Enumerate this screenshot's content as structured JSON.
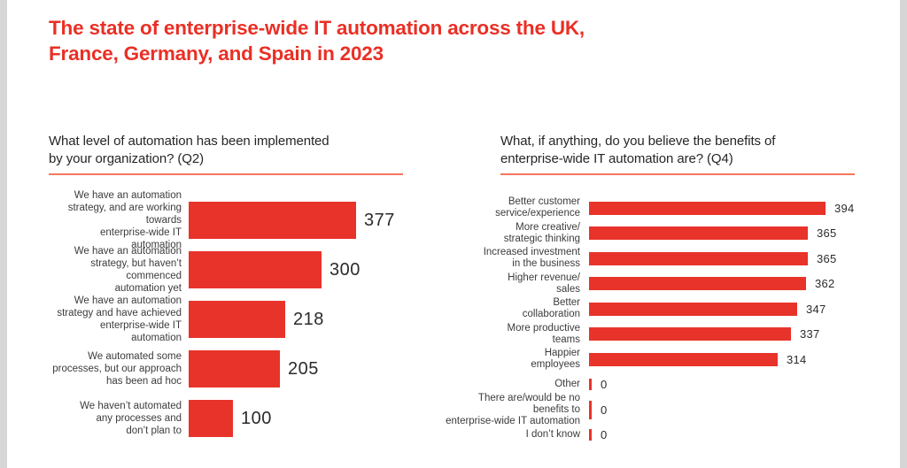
{
  "page": {
    "title": "The state of enterprise-wide IT automation across the UK,\nFrance, Germany, and Spain in 2023"
  },
  "colors": {
    "accent_red": "#E8332A",
    "title_red": "#EA2F25",
    "underline_salmon": "#F4775C",
    "text_dark": "#2B2B2B",
    "label_gray": "#3C3C3C",
    "edge_gray": "#D6D6D6"
  },
  "chart_data": [
    {
      "type": "bar",
      "orientation": "horizontal",
      "title": "What level of automation has been implemented\nby your organization? (Q2)",
      "categories": [
        "We have an automation\nstrategy, and are working towards\nenterprise-wide IT automation",
        "We have an automation\nstrategy, but haven’t commenced\nautomation yet",
        "We have an automation\nstrategy and have achieved\nenterprise-wide IT automation",
        "We automated some\nprocesses, but our approach\nhas been ad hoc",
        "We haven’t automated\nany processes and\ndon’t plan to"
      ],
      "values": [
        377,
        300,
        218,
        205,
        100
      ],
      "bar_color": "#E8332A",
      "xlim": [
        0,
        400
      ],
      "grid": false,
      "legend": false,
      "value_labels": "end-of-bar"
    },
    {
      "type": "bar",
      "orientation": "horizontal",
      "title": "What, if anything, do you believe the benefits of\nenterprise-wide IT automation are? (Q4)",
      "categories": [
        "Better customer\nservice/experience",
        "More creative/\nstrategic thinking",
        "Increased investment\nin the business",
        "Higher revenue/\nsales",
        "Better\ncollaboration",
        "More productive\nteams",
        "Happier\nemployees",
        "Other",
        "There are/would be no benefits to\nenterprise-wide IT automation",
        "I don’t know"
      ],
      "values": [
        394,
        365,
        365,
        362,
        347,
        337,
        314,
        0,
        0,
        0
      ],
      "bar_color": "#E8332A",
      "xlim": [
        0,
        410
      ],
      "grid": false,
      "legend": false,
      "value_labels": "end-of-bar"
    }
  ]
}
